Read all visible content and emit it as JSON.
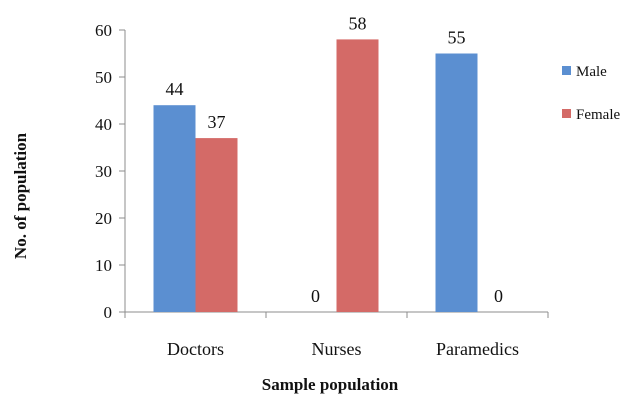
{
  "chart_data": {
    "type": "bar",
    "title": "",
    "xlabel": "Sample population",
    "ylabel": "No. of population",
    "categories": [
      "Doctors",
      "Nurses",
      "Paramedics"
    ],
    "series": [
      {
        "name": "Male",
        "color": "#5b8fd1",
        "values": [
          44,
          0,
          55
        ],
        "value_labels": [
          "44",
          "0",
          "55"
        ]
      },
      {
        "name": "Female",
        "color": "#d46a67",
        "values": [
          37,
          58,
          0
        ],
        "value_labels": [
          "37",
          "58",
          "0"
        ]
      }
    ],
    "ylim": [
      0,
      60
    ],
    "yticks": [
      0,
      10,
      20,
      30,
      40,
      50,
      60
    ],
    "ytick_labels": [
      "0",
      "10",
      "20",
      "30",
      "40",
      "50",
      "60"
    ],
    "grid": false,
    "legend": "right"
  }
}
